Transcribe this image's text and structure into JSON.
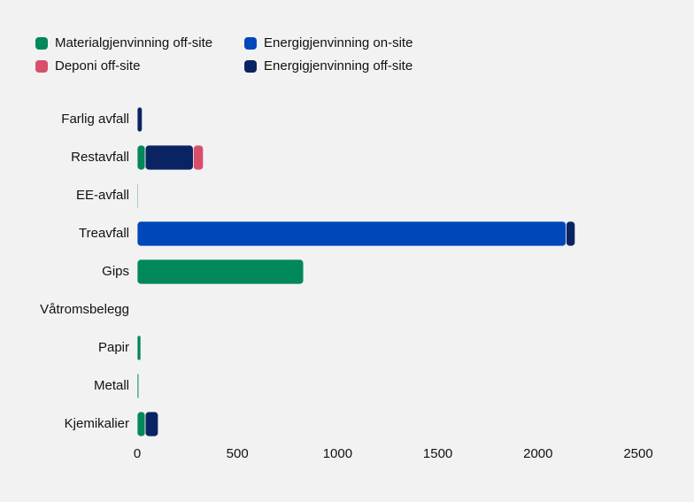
{
  "chart_data": {
    "type": "bar",
    "orientation": "horizontal",
    "stacked": true,
    "categories": [
      "Farlig avfall",
      "Restavfall",
      "EE-avfall",
      "Treavfall",
      "Gips",
      "Våtromsbelegg",
      "Papir",
      "Metall",
      "Kjemikalier"
    ],
    "series": [
      {
        "name": "Materialgjenvinning off-site",
        "color": "#00875a",
        "values": [
          0,
          40,
          5,
          0,
          830,
          3,
          18,
          8,
          40
        ]
      },
      {
        "name": "Deponi off-site",
        "color": "#d94f6b",
        "values": [
          0,
          50,
          0,
          0,
          0,
          0,
          0,
          0,
          0
        ]
      },
      {
        "name": "Energigjenvinning on-site",
        "color": "#0047ba",
        "values": [
          0,
          0,
          0,
          2140,
          0,
          0,
          0,
          0,
          0
        ]
      },
      {
        "name": "Energigjenvinning off-site",
        "color": "#0a2463",
        "values": [
          25,
          240,
          0,
          45,
          0,
          0,
          0,
          0,
          65
        ]
      }
    ],
    "xlim": [
      0,
      2500
    ],
    "xticks": [
      0,
      500,
      1000,
      1500,
      2000,
      2500
    ],
    "grid": false
  }
}
